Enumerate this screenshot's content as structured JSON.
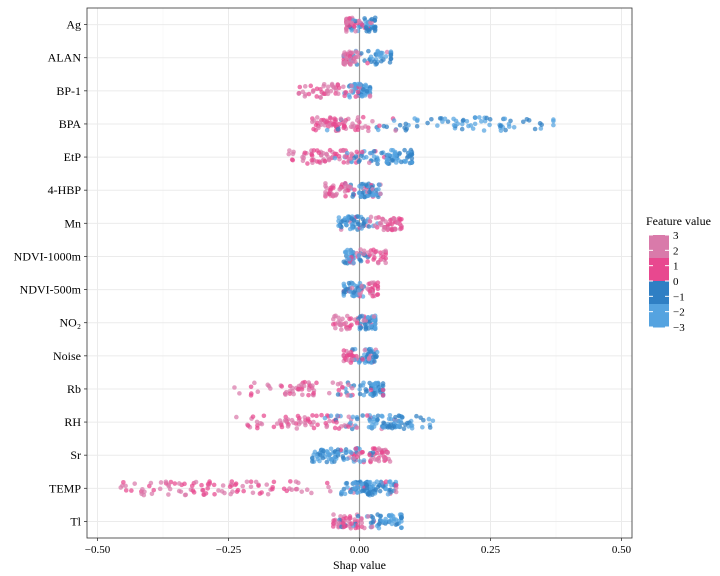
{
  "chart_data": {
    "type": "scatter",
    "subtype": "shap-beeswarm",
    "title": "",
    "xlabel": "Shap value",
    "ylabel": "",
    "xlim": [
      -0.52,
      0.52
    ],
    "xticks": [
      -0.5,
      -0.25,
      0.0,
      0.25,
      0.5
    ],
    "xtick_labels": [
      "−0.50",
      "−0.25",
      "0.00",
      "0.25",
      "0.50"
    ],
    "grid": true,
    "features": [
      "Ag",
      "ALAN",
      "BP-1",
      "BPA",
      "EtP",
      "4-HBP",
      "Mn",
      "NDVI-1000m",
      "NDVI-500m",
      "NO₂",
      "Noise",
      "Rb",
      "RH",
      "Sr",
      "TEMP",
      "Tl"
    ],
    "distributions": [
      {
        "feature": "Ag",
        "min": -0.025,
        "max": 0.03,
        "low_center": 0.01,
        "high_center": -0.01,
        "n": 90
      },
      {
        "feature": "ALAN",
        "min": -0.03,
        "max": 0.06,
        "low_center": 0.03,
        "high_center": -0.015,
        "n": 90
      },
      {
        "feature": "BP-1",
        "min": -0.12,
        "max": 0.02,
        "low_center": 0.0,
        "high_center": -0.04,
        "n": 110
      },
      {
        "feature": "BPA",
        "min": -0.09,
        "max": 0.37,
        "low_center": 0.16,
        "high_center": -0.04,
        "n": 150
      },
      {
        "feature": "EtP",
        "min": -0.135,
        "max": 0.1,
        "low_center": 0.05,
        "high_center": -0.05,
        "n": 150
      },
      {
        "feature": "4-HBP",
        "min": -0.065,
        "max": 0.04,
        "low_center": 0.01,
        "high_center": -0.03,
        "n": 110
      },
      {
        "feature": "Mn",
        "min": -0.04,
        "max": 0.08,
        "low_center": -0.01,
        "high_center": 0.04,
        "n": 110
      },
      {
        "feature": "NDVI-1000m",
        "min": -0.03,
        "max": 0.05,
        "low_center": -0.01,
        "high_center": 0.025,
        "n": 70
      },
      {
        "feature": "NDVI-500m",
        "min": -0.03,
        "max": 0.035,
        "low_center": -0.01,
        "high_center": 0.015,
        "n": 80
      },
      {
        "feature": "NO₂",
        "min": -0.05,
        "max": 0.03,
        "low_center": 0.015,
        "high_center": -0.02,
        "n": 80
      },
      {
        "feature": "Noise",
        "min": -0.03,
        "max": 0.035,
        "low_center": 0.01,
        "high_center": -0.01,
        "n": 80
      },
      {
        "feature": "Rb",
        "min": -0.25,
        "max": 0.045,
        "low_center": 0.02,
        "high_center": -0.08,
        "n": 120
      },
      {
        "feature": "RH",
        "min": -0.235,
        "max": 0.14,
        "low_center": 0.05,
        "high_center": -0.07,
        "n": 160
      },
      {
        "feature": "Sr",
        "min": -0.09,
        "max": 0.06,
        "low_center": -0.04,
        "high_center": 0.025,
        "n": 120
      },
      {
        "feature": "TEMP",
        "min": -0.49,
        "max": 0.07,
        "low_center": 0.01,
        "high_center": -0.2,
        "n": 220
      },
      {
        "feature": "Tl",
        "min": -0.05,
        "max": 0.08,
        "low_center": 0.04,
        "high_center": -0.02,
        "n": 110
      }
    ],
    "legend": {
      "title": "Feature value",
      "position": "right",
      "scale": [
        3,
        2,
        1,
        0,
        -1,
        -2,
        -3
      ],
      "labels": [
        "3",
        "2",
        "1",
        "0",
        "−1",
        "−2",
        "−3"
      ],
      "colors": {
        "high": "#d97aaa",
        "mid_high": "#e8488f",
        "mid_low": "#2f7fc4",
        "low": "#55a3e0"
      }
    },
    "zero_line_color": "#9a9a9a",
    "grid_color": "#ebebeb"
  }
}
